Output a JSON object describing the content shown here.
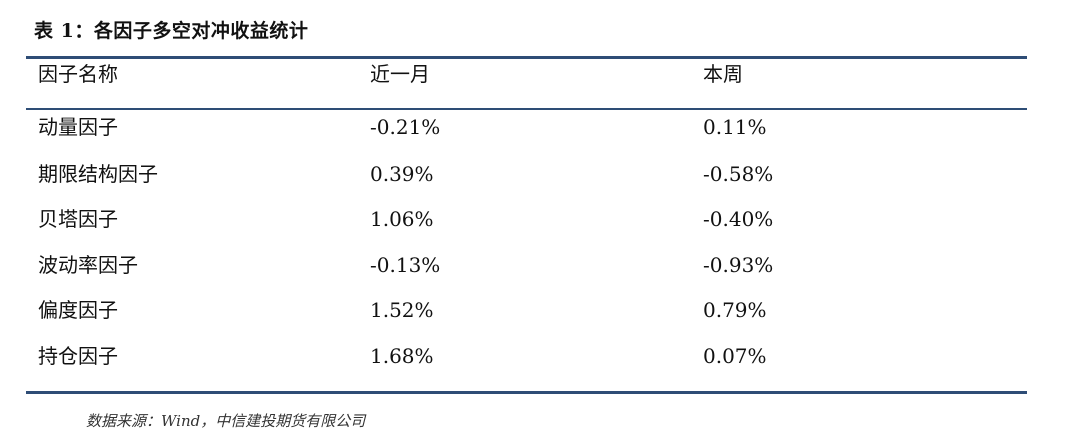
{
  "table": {
    "title": "表 1：各因子多空对冲收益统计",
    "columns": [
      "因子名称",
      "近一月",
      "本周"
    ],
    "rows": [
      {
        "name": "动量因子",
        "month": "-0.21%",
        "week": "0.11%"
      },
      {
        "name": "期限结构因子",
        "month": "0.39%",
        "week": "-0.58%"
      },
      {
        "name": "贝塔因子",
        "month": "1.06%",
        "week": "-0.40%"
      },
      {
        "name": "波动率因子",
        "month": "-0.13%",
        "week": "-0.93%"
      },
      {
        "name": "偏度因子",
        "month": "1.52%",
        "week": "0.79%"
      },
      {
        "name": "持仓因子",
        "month": "1.68%",
        "week": "0.07%"
      }
    ],
    "source": "数据来源：Wind，中信建投期货有限公司"
  },
  "colors": {
    "rule": "#2e4d76",
    "text": "#111111",
    "background": "#ffffff"
  }
}
